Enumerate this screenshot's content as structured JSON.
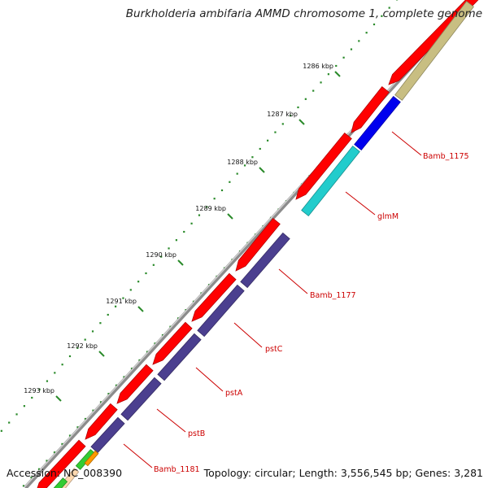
{
  "title": "Burkholderia ambifaria AMMD chromosome 1, complete genome",
  "footer": {
    "accession": "Accession: NC_008390",
    "topology": "Topology: circular; Length: 3,556,545 bp; Genes: 3,281"
  },
  "colors": {
    "backbone": "#8c8c8c",
    "forward_cds": "#ff0000",
    "reverse_cds": "#4b3f8f",
    "blue_cds": "#0000ee",
    "cyan_cds": "#22cccc",
    "olive_cds": "#c8be82",
    "green_cds": "#33cc33",
    "orange_cds": "#ff9900",
    "peach_cds": "#ffd9b0",
    "gc_dots": "#2a8a2a",
    "label_color": "#cc0000"
  },
  "ticks": [
    "1286 kbp",
    "1287 kbp",
    "1288 kbp",
    "1289 kbp",
    "1290 kbp",
    "1291 kbp",
    "1292 kbp",
    "1293 kbp"
  ],
  "gene_labels": [
    "Bamb_1175",
    "glmM",
    "Bamb_1177",
    "pstC",
    "pstA",
    "pstB",
    "Bamb_1181"
  ]
}
